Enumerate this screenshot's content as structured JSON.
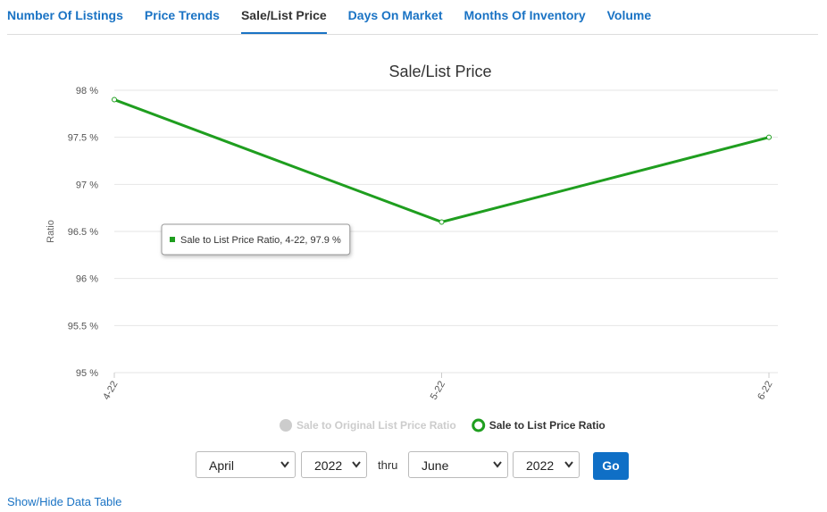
{
  "tabs": [
    "Number Of Listings",
    "Price Trends",
    "Sale/List Price",
    "Days On Market",
    "Months Of Inventory",
    "Volume"
  ],
  "active_tab": 2,
  "chart_data": {
    "type": "line",
    "title": "Sale/List Price",
    "y_label": "Ratio",
    "categories": [
      "4-22",
      "5-22",
      "6-22"
    ],
    "series": [
      {
        "name": "Sale to Original List Price Ratio",
        "color": "#cccccc",
        "hidden": true,
        "values": [
          null,
          null,
          null
        ]
      },
      {
        "name": "Sale to List Price Ratio",
        "color": "#1f9e1f",
        "hidden": false,
        "values": [
          97.9,
          96.6,
          97.5
        ]
      }
    ],
    "ylim": [
      95,
      98
    ],
    "yticks": [
      {
        "value": 95,
        "label": "95 %"
      },
      {
        "value": 95.5,
        "label": "95.5 %"
      },
      {
        "value": 96,
        "label": "96 %"
      },
      {
        "value": 96.5,
        "label": "96.5 %"
      },
      {
        "value": 97,
        "label": "97 %"
      },
      {
        "value": 97.5,
        "label": "97.5 %"
      },
      {
        "value": 98,
        "label": "98 %"
      }
    ],
    "grid": true,
    "tooltip": "Sale to List Price Ratio, 4-22, 97.9 %"
  },
  "controls": {
    "from_month": "April",
    "from_year": "2022",
    "separator": "thru",
    "to_month": "June",
    "to_year": "2022",
    "button": "Go"
  },
  "link": "Show/Hide Data Table"
}
